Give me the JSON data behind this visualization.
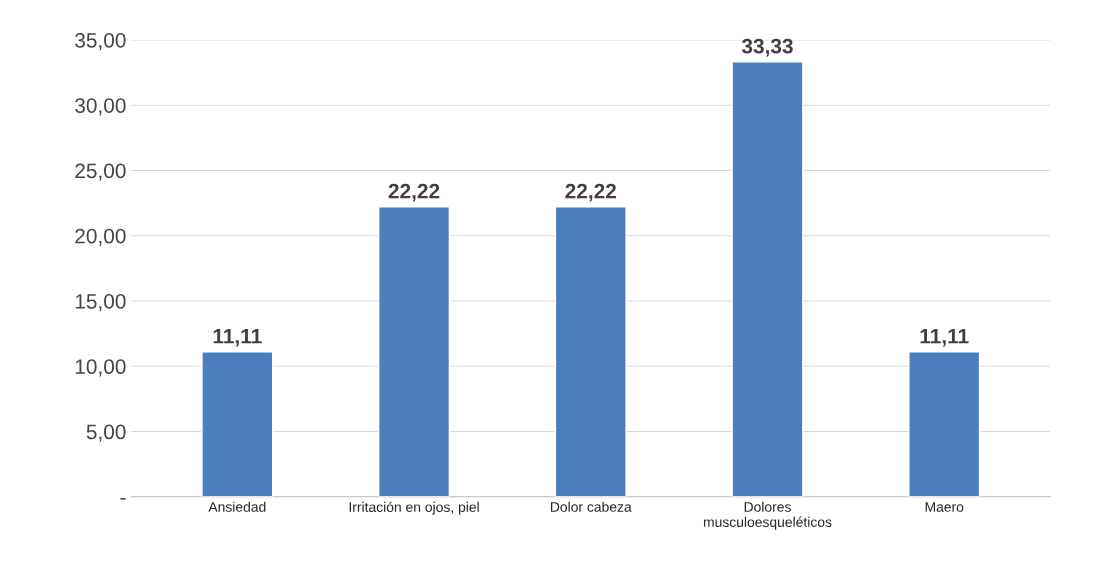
{
  "chart_data": {
    "type": "bar",
    "categories": [
      "Ansiedad",
      "Irritación en ojos, piel",
      "Dolor cabeza",
      "Dolores\nmusculoesqueléticos",
      "Maero"
    ],
    "values": [
      11.11,
      22.22,
      22.22,
      33.33,
      11.11
    ],
    "value_labels": [
      "11,11",
      "22,22",
      "22,22",
      "33,33",
      "11,11"
    ],
    "color": "#4a7ebf",
    "ylim": [
      0,
      35
    ],
    "yticks": [
      {
        "value": 0,
        "label": "-"
      },
      {
        "value": 5,
        "label": "5,00"
      },
      {
        "value": 10,
        "label": "10,00"
      },
      {
        "value": 15,
        "label": "15,00"
      },
      {
        "value": 20,
        "label": "20,00"
      },
      {
        "value": 25,
        "label": "25,00"
      },
      {
        "value": 30,
        "label": "30,00"
      },
      {
        "value": 35,
        "label": "35,00"
      }
    ],
    "grid": "y"
  }
}
